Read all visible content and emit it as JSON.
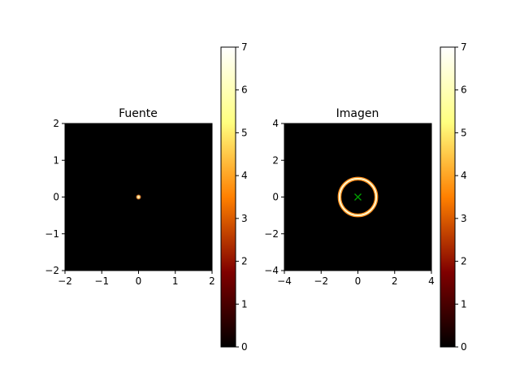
{
  "chart_data": [
    {
      "type": "heatmap",
      "title": "Fuente",
      "xlim": [
        -2,
        2
      ],
      "ylim": [
        -2,
        2
      ],
      "xticks": [
        "−2",
        "−1",
        "0",
        "1",
        "2"
      ],
      "yticks": [
        "−2",
        "−1",
        "0",
        "1",
        "2"
      ],
      "colormap": "afmhot",
      "colorbar": {
        "range": [
          0,
          7
        ],
        "ticks": [
          "0",
          "1",
          "2",
          "3",
          "4",
          "5",
          "6",
          "7"
        ]
      },
      "features": [
        {
          "kind": "spot",
          "x": 0,
          "y": 0,
          "radius": 0.07,
          "peak": 7
        }
      ]
    },
    {
      "type": "heatmap",
      "title": "Imagen",
      "xlim": [
        -4,
        4
      ],
      "ylim": [
        -4,
        4
      ],
      "xticks": [
        "−4",
        "−2",
        "0",
        "2",
        "4"
      ],
      "yticks": [
        "−4",
        "−2",
        "0",
        "2",
        "4"
      ],
      "colormap": "afmhot",
      "colorbar": {
        "range": [
          0,
          7
        ],
        "ticks": [
          "0",
          "1",
          "2",
          "3",
          "4",
          "5",
          "6",
          "7"
        ]
      },
      "features": [
        {
          "kind": "ring",
          "x": 0,
          "y": 0,
          "radius": 1.0,
          "peak": 7
        },
        {
          "kind": "marker",
          "symbol": "x",
          "x": 0,
          "y": 0,
          "color": "#00a000"
        }
      ]
    }
  ]
}
